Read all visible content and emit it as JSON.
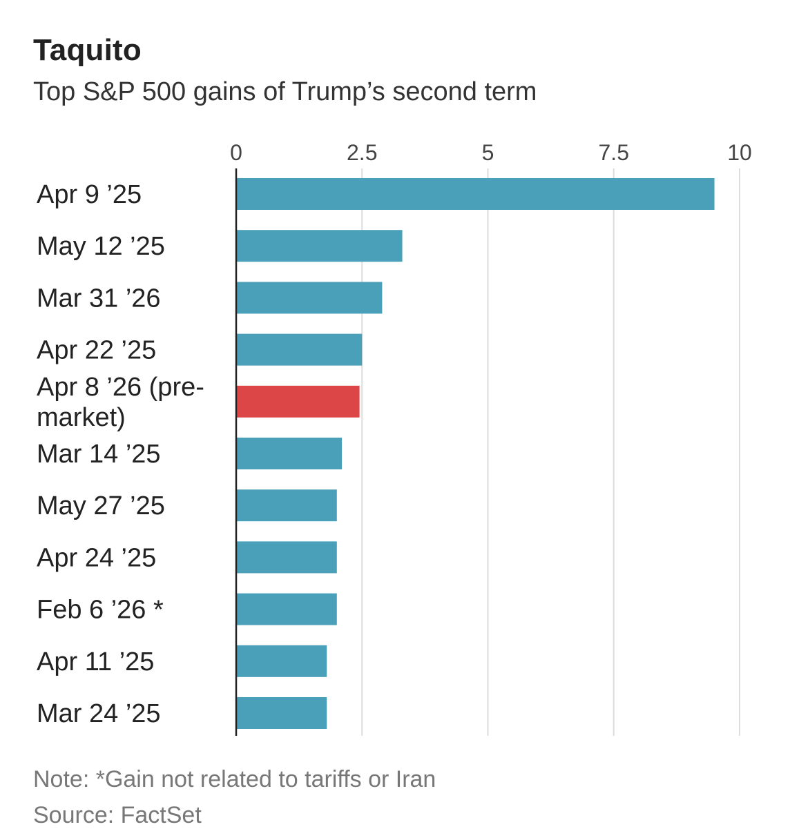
{
  "header": {
    "title": "Taquito",
    "subtitle": "Top S&P 500 gains of Trump’s second term"
  },
  "footer": {
    "note": "Note: *Gain not related to tariffs or Iran",
    "source": "Source: FactSet"
  },
  "colors": {
    "bar": "#4aa0b8",
    "highlight": "#dd4646",
    "grid": "#dddddd",
    "axis": "#222222"
  },
  "chart_data": {
    "type": "bar",
    "orientation": "horizontal",
    "title": "Taquito",
    "subtitle": "Top S&P 500 gains of Trump’s second term",
    "xlabel": "",
    "ylabel": "",
    "xlim": [
      0,
      10
    ],
    "ticks": [
      0,
      2.5,
      5,
      7.5,
      10
    ],
    "tick_labels": [
      "0",
      "2.5",
      "5",
      "7.5",
      "10"
    ],
    "grid": true,
    "categories": [
      [
        "Apr 9 ’25"
      ],
      [
        "May 12 ’25"
      ],
      [
        "Mar 31 ’26"
      ],
      [
        "Apr 22 ’25"
      ],
      [
        "Apr 8 ’26 (pre-",
        "market)"
      ],
      [
        "Mar 14 ’25"
      ],
      [
        "May 27 ’25"
      ],
      [
        "Apr 24 ’25"
      ],
      [
        "Feb 6 ’26 *"
      ],
      [
        "Apr 11 ’25"
      ],
      [
        "Mar 24 ’25"
      ]
    ],
    "values": [
      9.5,
      3.3,
      2.9,
      2.5,
      2.45,
      2.1,
      2.0,
      2.0,
      2.0,
      1.8,
      1.8
    ],
    "highlight_index": 4
  }
}
